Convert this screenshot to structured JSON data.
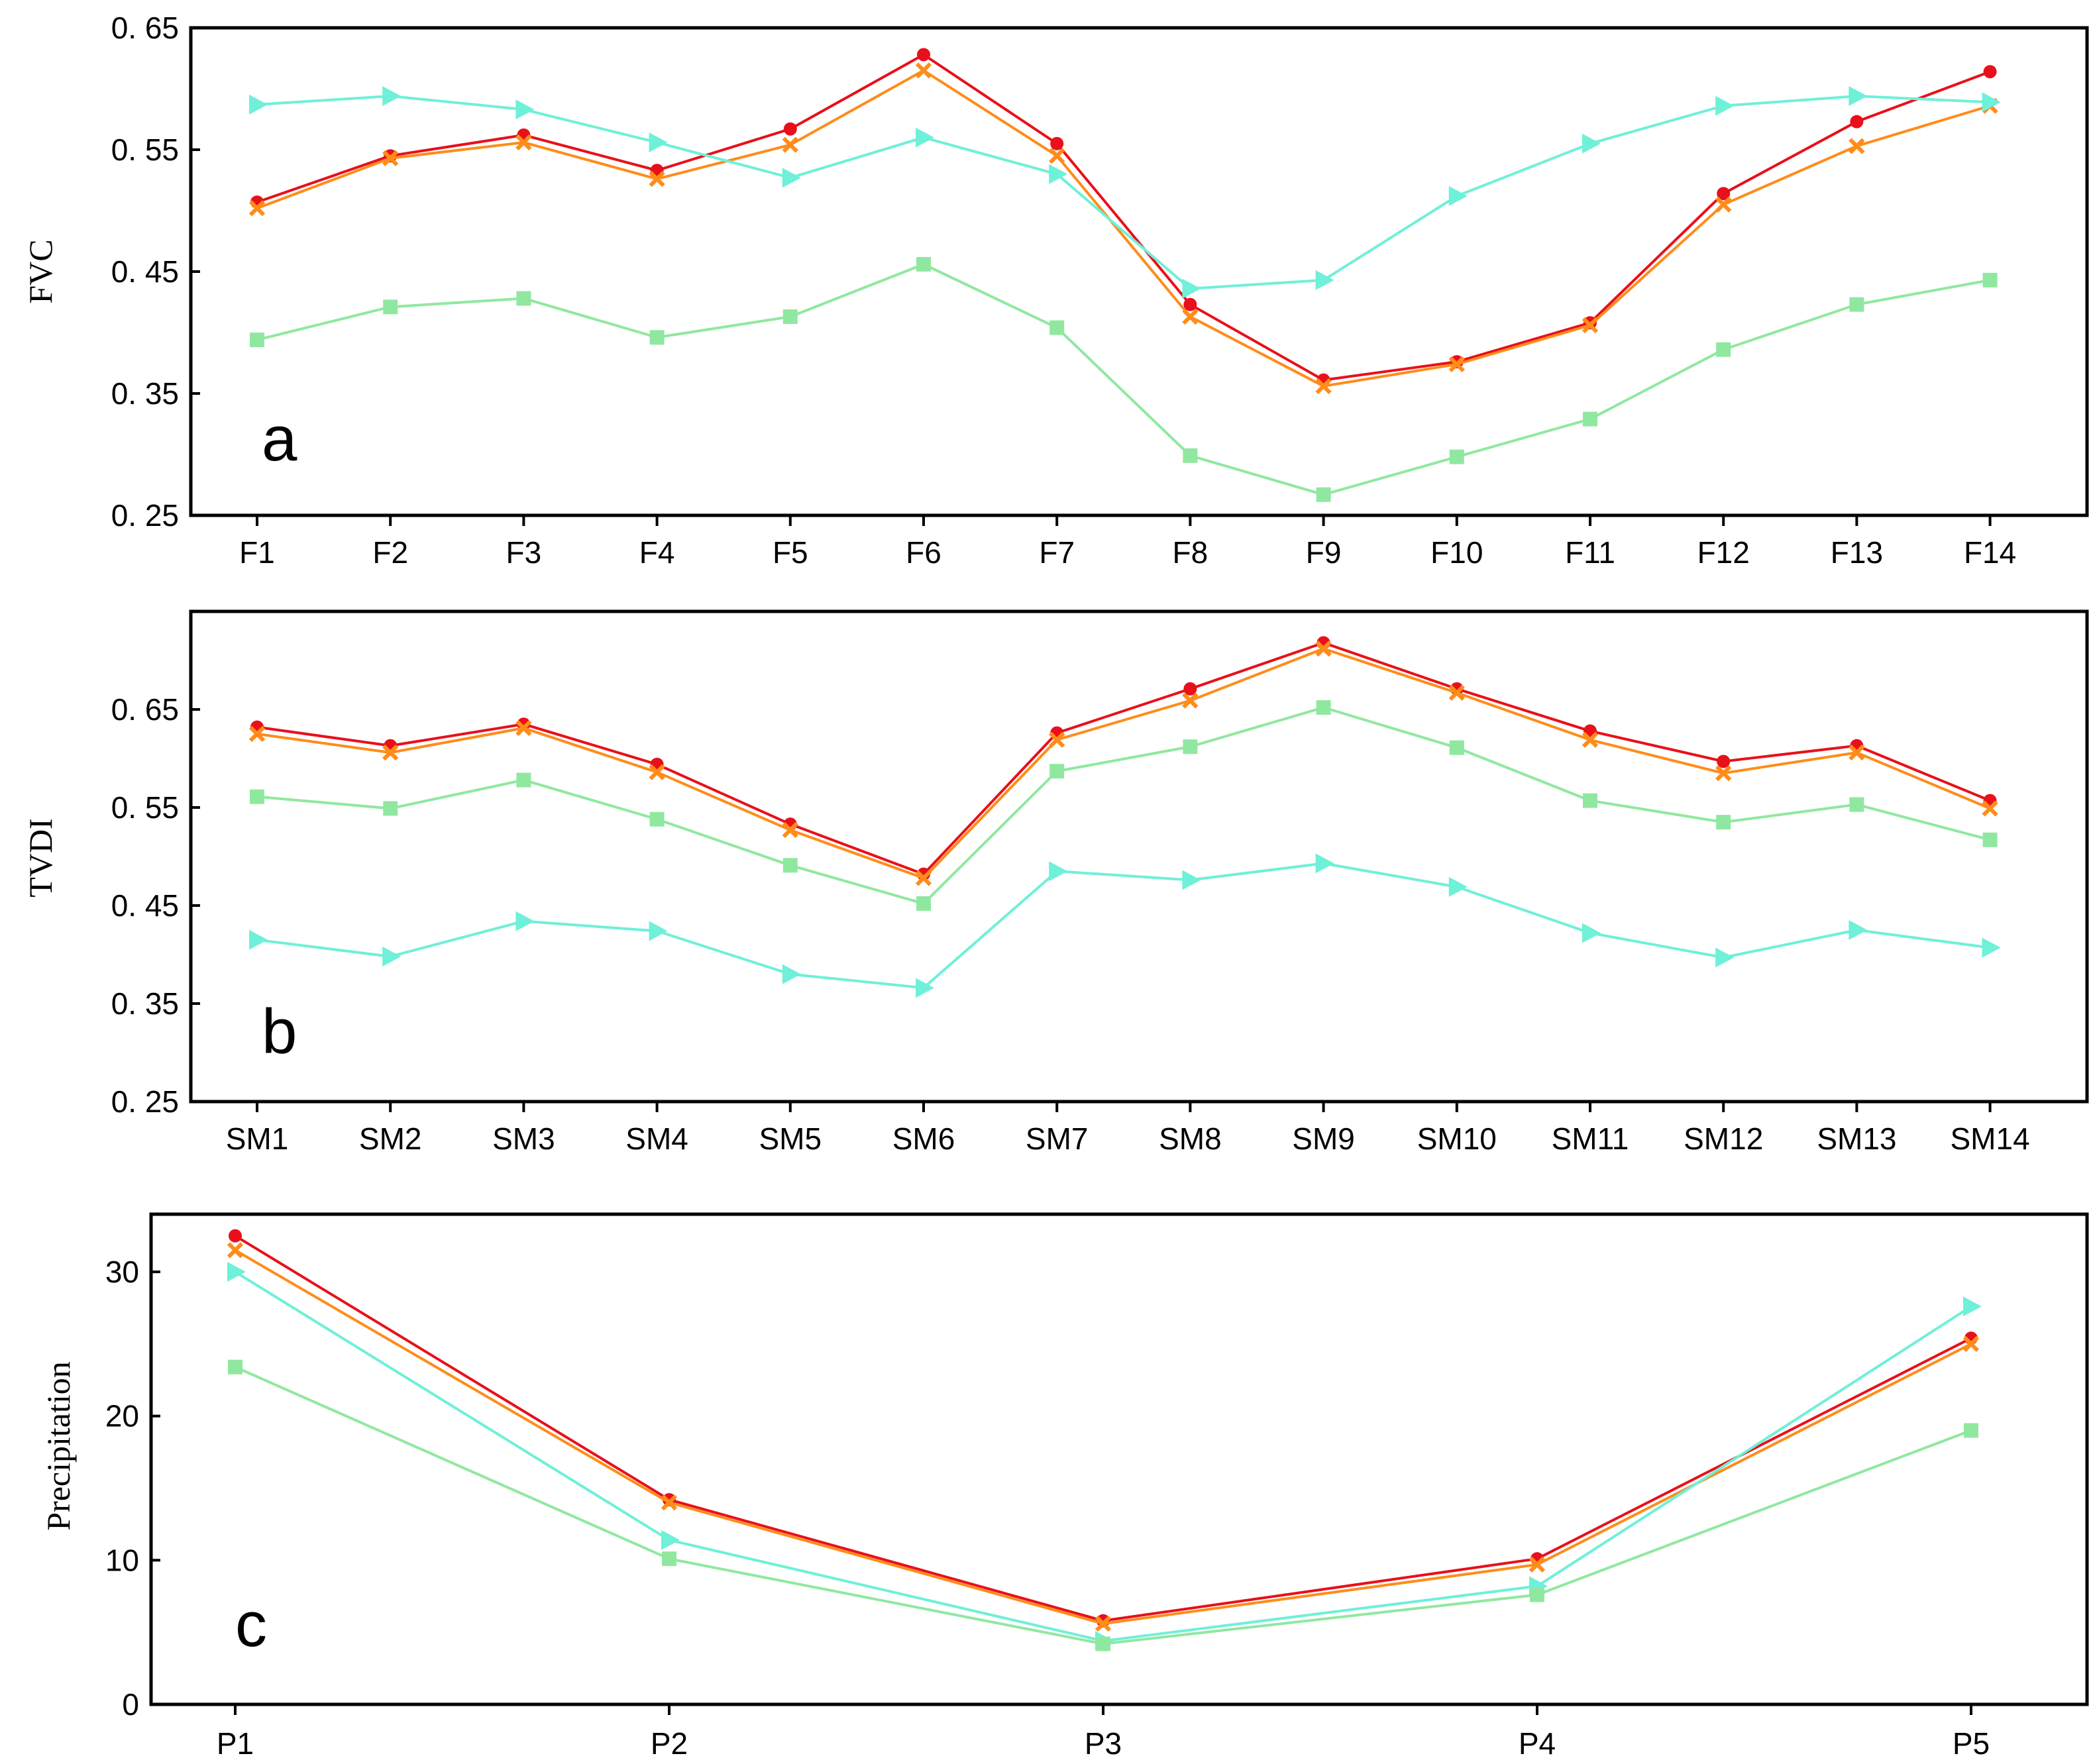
{
  "chart_data": [
    {
      "type": "line",
      "panel": "a",
      "ylabel": "FVC",
      "ylim": [
        0.25,
        0.65
      ],
      "yticks": [
        0.25,
        0.35,
        0.45,
        0.55,
        0.65
      ],
      "ytick_labels": [
        "0. 25",
        "0. 35",
        "0. 45",
        "0. 55",
        "0. 65"
      ],
      "categories": [
        "F1",
        "F2",
        "F3",
        "F4",
        "F5",
        "F6",
        "F7",
        "F8",
        "F9",
        "F10",
        "F11",
        "F12",
        "F13",
        "F14"
      ],
      "series": [
        {
          "name": "red-circle",
          "color": "#e8101a",
          "marker": "circle",
          "values": [
            0.507,
            0.545,
            0.562,
            0.533,
            0.567,
            0.628,
            0.555,
            0.423,
            0.361,
            0.376,
            0.408,
            0.514,
            0.573,
            0.614
          ]
        },
        {
          "name": "orange-x",
          "color": "#ff8c1a",
          "marker": "x",
          "values": [
            0.502,
            0.543,
            0.556,
            0.526,
            0.554,
            0.615,
            0.545,
            0.413,
            0.356,
            0.374,
            0.406,
            0.505,
            0.553,
            0.586
          ]
        },
        {
          "name": "cyan-triangle",
          "color": "#6ff0d8",
          "marker": "triangle",
          "values": [
            0.587,
            0.594,
            0.583,
            0.556,
            0.527,
            0.56,
            0.53,
            0.436,
            0.443,
            0.512,
            0.555,
            0.586,
            0.594,
            0.589
          ]
        },
        {
          "name": "green-square",
          "color": "#90e8a0",
          "marker": "square",
          "values": [
            0.394,
            0.421,
            0.428,
            0.396,
            0.413,
            0.456,
            0.404,
            0.299,
            0.267,
            0.298,
            0.329,
            0.386,
            0.423,
            0.443
          ]
        }
      ]
    },
    {
      "type": "line",
      "panel": "b",
      "ylabel": "TVDI",
      "ylim": [
        0.25,
        0.75
      ],
      "yticks": [
        0.25,
        0.35,
        0.45,
        0.55,
        0.65
      ],
      "ytick_labels": [
        "0. 25",
        "0. 35",
        "0. 45",
        "0. 55",
        "0. 65"
      ],
      "categories": [
        "SM1",
        "SM2",
        "SM3",
        "SM4",
        "SM5",
        "SM6",
        "SM7",
        "SM8",
        "SM9",
        "SM10",
        "SM11",
        "SM12",
        "SM13",
        "SM14"
      ],
      "series": [
        {
          "name": "red-circle",
          "color": "#e8101a",
          "marker": "circle",
          "values": [
            0.632,
            0.613,
            0.635,
            0.594,
            0.533,
            0.482,
            0.626,
            0.671,
            0.718,
            0.671,
            0.628,
            0.597,
            0.613,
            0.557
          ]
        },
        {
          "name": "orange-x",
          "color": "#ff8c1a",
          "marker": "x",
          "values": [
            0.625,
            0.606,
            0.631,
            0.586,
            0.527,
            0.478,
            0.619,
            0.659,
            0.712,
            0.667,
            0.619,
            0.585,
            0.606,
            0.549
          ]
        },
        {
          "name": "cyan-triangle",
          "color": "#6ff0d8",
          "marker": "triangle",
          "values": [
            0.415,
            0.398,
            0.434,
            0.424,
            0.38,
            0.366,
            0.485,
            0.476,
            0.493,
            0.469,
            0.422,
            0.397,
            0.425,
            0.407
          ]
        },
        {
          "name": "green-square",
          "color": "#90e8a0",
          "marker": "square",
          "values": [
            0.561,
            0.549,
            0.578,
            0.538,
            0.491,
            0.452,
            0.587,
            0.612,
            0.652,
            0.611,
            0.557,
            0.535,
            0.553,
            0.517
          ]
        }
      ]
    },
    {
      "type": "line",
      "panel": "c",
      "ylabel": "Precipitation",
      "ylim": [
        0,
        34
      ],
      "yticks": [
        0,
        10,
        20,
        30
      ],
      "ytick_labels": [
        "0",
        "10",
        "20",
        "30"
      ],
      "categories": [
        "P1",
        "P2",
        "P3",
        "P4",
        "P5"
      ],
      "series": [
        {
          "name": "red-circle",
          "color": "#e8101a",
          "marker": "circle",
          "values": [
            32.5,
            14.2,
            5.8,
            10.1,
            25.4
          ]
        },
        {
          "name": "orange-x",
          "color": "#ff8c1a",
          "marker": "x",
          "values": [
            31.5,
            14.0,
            5.6,
            9.7,
            25.0
          ]
        },
        {
          "name": "cyan-triangle",
          "color": "#6ff0d8",
          "marker": "triangle",
          "values": [
            30.0,
            11.4,
            4.4,
            8.2,
            27.6
          ]
        },
        {
          "name": "green-square",
          "color": "#90e8a0",
          "marker": "square",
          "values": [
            23.4,
            10.1,
            4.2,
            7.6,
            19.0
          ]
        }
      ]
    }
  ]
}
